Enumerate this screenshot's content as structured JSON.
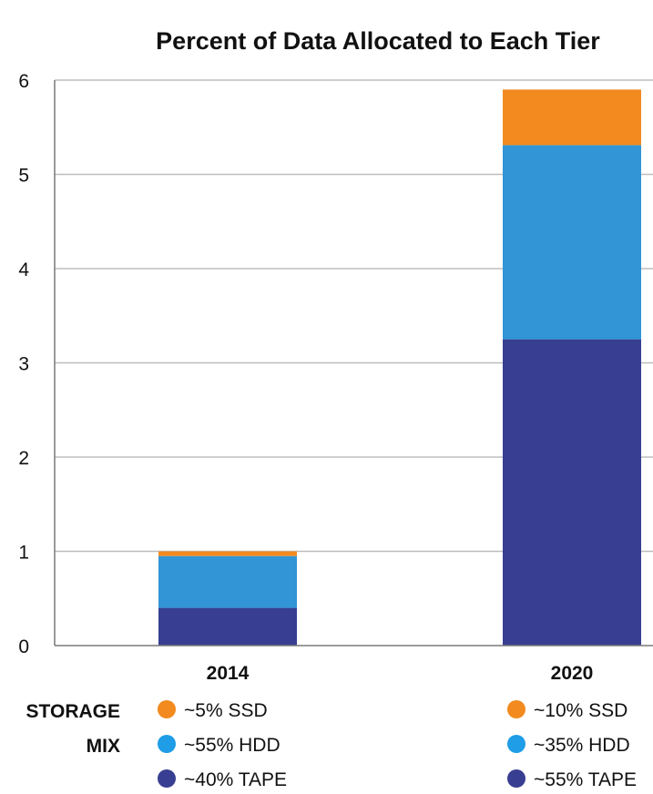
{
  "chart_data": {
    "type": "bar",
    "stacked": true,
    "title": "Percent of Data Allocated to Each Tier",
    "xlabel": "",
    "ylabel": "",
    "categories": [
      "2014",
      "2020"
    ],
    "ylim": [
      0,
      6
    ],
    "yticks": [
      "0",
      "1",
      "2",
      "3",
      "4",
      "5",
      "6"
    ],
    "grid": true,
    "series": [
      {
        "id": "tape",
        "color": "#383e91",
        "values": [
          0.4,
          3.25
        ]
      },
      {
        "id": "hdd",
        "color": "#3195d6",
        "values": [
          0.55,
          2.06
        ]
      },
      {
        "id": "ssd",
        "color": "#f28a1f",
        "values": [
          0.05,
          0.59
        ]
      }
    ]
  },
  "legend": {
    "heading_line1": "STORAGE",
    "heading_line2": "MIX",
    "groups": [
      {
        "category": "2014",
        "items": [
          {
            "label": "~5% SSD",
            "color": "#f28a1f"
          },
          {
            "label": "~55% HDD",
            "color": "#1f9de6"
          },
          {
            "label": "~40% TAPE",
            "color": "#383e91"
          }
        ]
      },
      {
        "category": "2020",
        "items": [
          {
            "label": "~10% SSD",
            "color": "#f28a1f"
          },
          {
            "label": "~35% HDD",
            "color": "#1f9de6"
          },
          {
            "label": "~55% TAPE",
            "color": "#383e91"
          }
        ]
      }
    ]
  }
}
